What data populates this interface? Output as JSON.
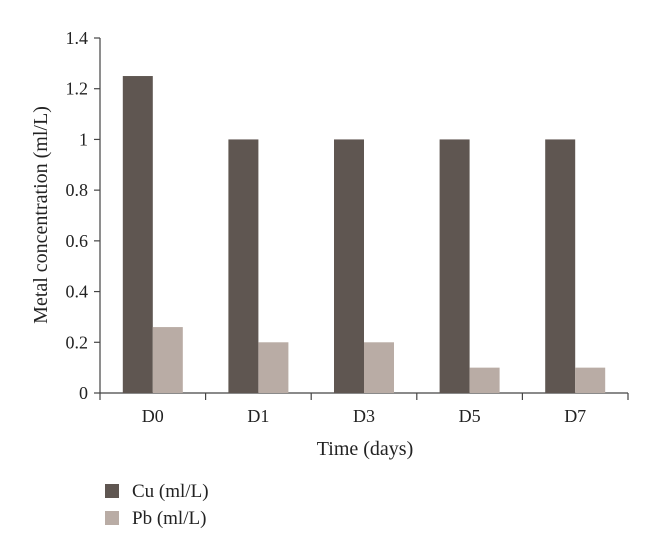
{
  "chart_data": {
    "type": "bar",
    "categories": [
      "D0",
      "D1",
      "D3",
      "D5",
      "D7"
    ],
    "series": [
      {
        "name": "Cu (ml/L)",
        "values": [
          1.25,
          1.0,
          1.0,
          1.0,
          1.0
        ],
        "color": "#5f5651"
      },
      {
        "name": "Pb (ml/L)",
        "values": [
          0.26,
          0.2,
          0.2,
          0.1,
          0.1
        ],
        "color": "#b9aca5"
      }
    ],
    "xlabel": "Time (days)",
    "ylabel": "Metal concentration (ml/L)",
    "ylim": [
      0,
      1.4
    ],
    "yticks": [
      0,
      0.2,
      0.4,
      0.6,
      0.8,
      1,
      1.2,
      1.4
    ],
    "ytick_labels": [
      "0",
      "0.2",
      "0.4",
      "0.6",
      "0.8",
      "1",
      "1.2",
      "1.4"
    ],
    "grid": false,
    "legend_position": "bottom-left",
    "axis_color": "#444444"
  }
}
